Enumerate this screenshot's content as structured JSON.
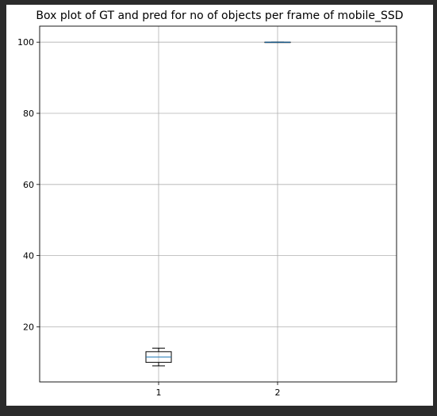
{
  "chart_data": {
    "type": "box",
    "title": "Box plot of GT and pred for no of objects per frame of mobile_SSD",
    "xlabel": "",
    "ylabel": "",
    "categories": [
      "1",
      "2"
    ],
    "boxes": [
      {
        "category": "1",
        "whisker_low": 9,
        "q1": 10,
        "median": 11.5,
        "q3": 13,
        "whisker_high": 14
      },
      {
        "category": "2",
        "whisker_low": 100,
        "q1": 100,
        "median": 100,
        "q3": 100,
        "whisker_high": 100
      }
    ],
    "yticks": [
      20,
      40,
      60,
      80,
      100
    ],
    "ylim": [
      4.5,
      104.5
    ],
    "grid": true,
    "colors": {
      "box": "#000000",
      "median": "#1f77b4",
      "grid": "#b0b0b0"
    }
  }
}
